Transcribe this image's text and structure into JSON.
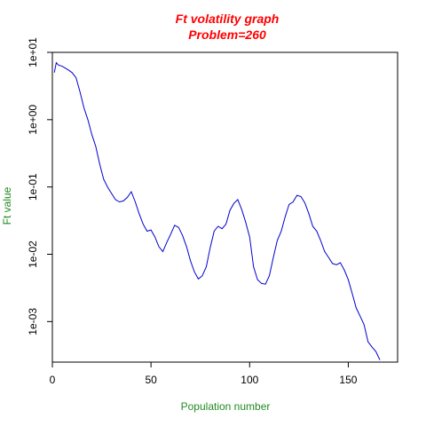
{
  "colors": {
    "title": "#ff0000",
    "axis_label": "#228b22",
    "line": "#0000cd",
    "axis": "#000000",
    "background": "#ffffff"
  },
  "chart_data": {
    "type": "line",
    "title": "Ft volatility graph",
    "subtitle": "Problem=260",
    "xlabel": "Population number",
    "ylabel": "Ft value",
    "xlim": [
      0,
      175
    ],
    "ylim": [
      0.00025,
      10
    ],
    "y_scale": "log",
    "grid": false,
    "legend": "none",
    "x_ticks": [
      0,
      50,
      100,
      150
    ],
    "x_tick_labels": [
      "0",
      "50",
      "100",
      "150"
    ],
    "y_ticks": [
      0.001,
      0.01,
      0.1,
      1,
      10
    ],
    "y_tick_labels": [
      "1e-03",
      "1e-02",
      "1e-01",
      "1e+00",
      "1e+01"
    ],
    "series": [
      {
        "x": [
          1,
          2,
          3,
          5,
          8,
          10,
          12,
          14,
          16,
          18,
          20,
          22,
          24,
          26,
          28,
          30,
          32,
          34,
          36,
          38,
          40,
          42,
          44,
          46,
          48,
          50,
          52,
          54,
          56,
          58,
          60,
          62,
          64,
          66,
          68,
          70,
          72,
          74,
          76,
          78,
          80,
          82,
          84,
          86,
          88,
          90,
          92,
          94,
          96,
          98,
          100,
          102,
          104,
          106,
          108,
          110,
          112,
          114,
          116,
          118,
          120,
          122,
          124,
          126,
          128,
          130,
          132,
          134,
          136,
          138,
          140,
          142,
          144,
          146,
          148,
          150,
          152,
          154,
          156,
          158,
          160,
          162,
          164,
          166
        ],
        "y": [
          5.0,
          7.0,
          6.5,
          6.2,
          5.5,
          5.0,
          4.2,
          2.6,
          1.5,
          1.0,
          0.6,
          0.4,
          0.22,
          0.13,
          0.1,
          0.08,
          0.065,
          0.06,
          0.062,
          0.07,
          0.085,
          0.06,
          0.04,
          0.028,
          0.022,
          0.023,
          0.018,
          0.013,
          0.011,
          0.015,
          0.02,
          0.027,
          0.025,
          0.019,
          0.013,
          0.008,
          0.0055,
          0.0043,
          0.0048,
          0.0065,
          0.0125,
          0.022,
          0.026,
          0.024,
          0.028,
          0.045,
          0.057,
          0.065,
          0.046,
          0.03,
          0.018,
          0.0065,
          0.0042,
          0.0037,
          0.0036,
          0.0048,
          0.009,
          0.016,
          0.022,
          0.036,
          0.055,
          0.06,
          0.075,
          0.072,
          0.058,
          0.04,
          0.026,
          0.022,
          0.016,
          0.011,
          0.009,
          0.0073,
          0.007,
          0.0075,
          0.0058,
          0.0042,
          0.0026,
          0.0016,
          0.0012,
          0.0009,
          0.0005,
          0.00042,
          0.00036,
          0.00027
        ]
      }
    ]
  }
}
